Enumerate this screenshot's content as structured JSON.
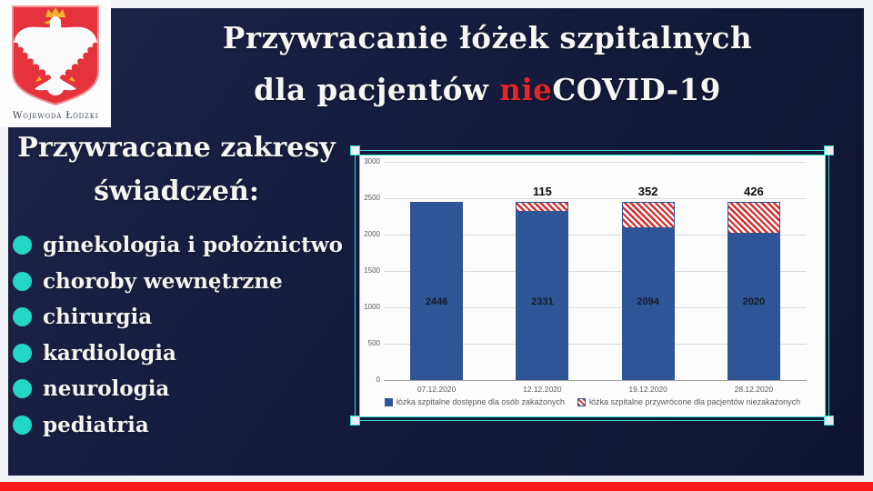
{
  "logo": {
    "caption": "Wojewoda Łódzki",
    "emblem": "polish-eagle-coat-of-arms"
  },
  "title": {
    "line1": "Przywracanie łóżek szpitalnych",
    "line2_prefix": "dla pacjentów ",
    "line2_accent": "nie",
    "line2_suffix": "COVID-19",
    "accent_color": "#e02629"
  },
  "left_panel": {
    "heading_line1": "Przywracane zakresy",
    "heading_line2": "świadczeń:",
    "items": [
      "ginekologia i położnictwo",
      "choroby wewnętrzne",
      "chirurgia",
      "kardiologia",
      "neurologia",
      "pediatria"
    ],
    "bullet_color": "#22d7c5"
  },
  "chart_data": {
    "type": "bar",
    "stacked": true,
    "categories": [
      "07.12.2020",
      "12.12.2020",
      "19.12.2020",
      "28.12.2020"
    ],
    "series": [
      {
        "name": "łóżka szpitalne dostępne dla osób zakażonych",
        "values": [
          2446,
          2331,
          2094,
          2020
        ],
        "color": "#2f5597",
        "pattern": "solid",
        "labels_inside": true
      },
      {
        "name": "łóżka szpitalne przywrócone dla pacjentów niezakażonych",
        "values": [
          0,
          115,
          352,
          426
        ],
        "color": "#d92b2b",
        "pattern": "diagonal-hatch",
        "labels_above": true
      }
    ],
    "bar_totals": [
      2446,
      2446,
      2446,
      2446
    ],
    "ylim": [
      0,
      3000
    ],
    "ytick_step": 500,
    "grid": true,
    "legend_position": "bottom",
    "xlabel": "",
    "ylabel": ""
  },
  "colors": {
    "background_navy": "#151b3c",
    "footer_red": "#fb1a1a",
    "frame_teal": "#38dcce",
    "bar_blue": "#2f5597",
    "hatch_red": "#d92b2b",
    "chart_text_gray": "#595959"
  }
}
